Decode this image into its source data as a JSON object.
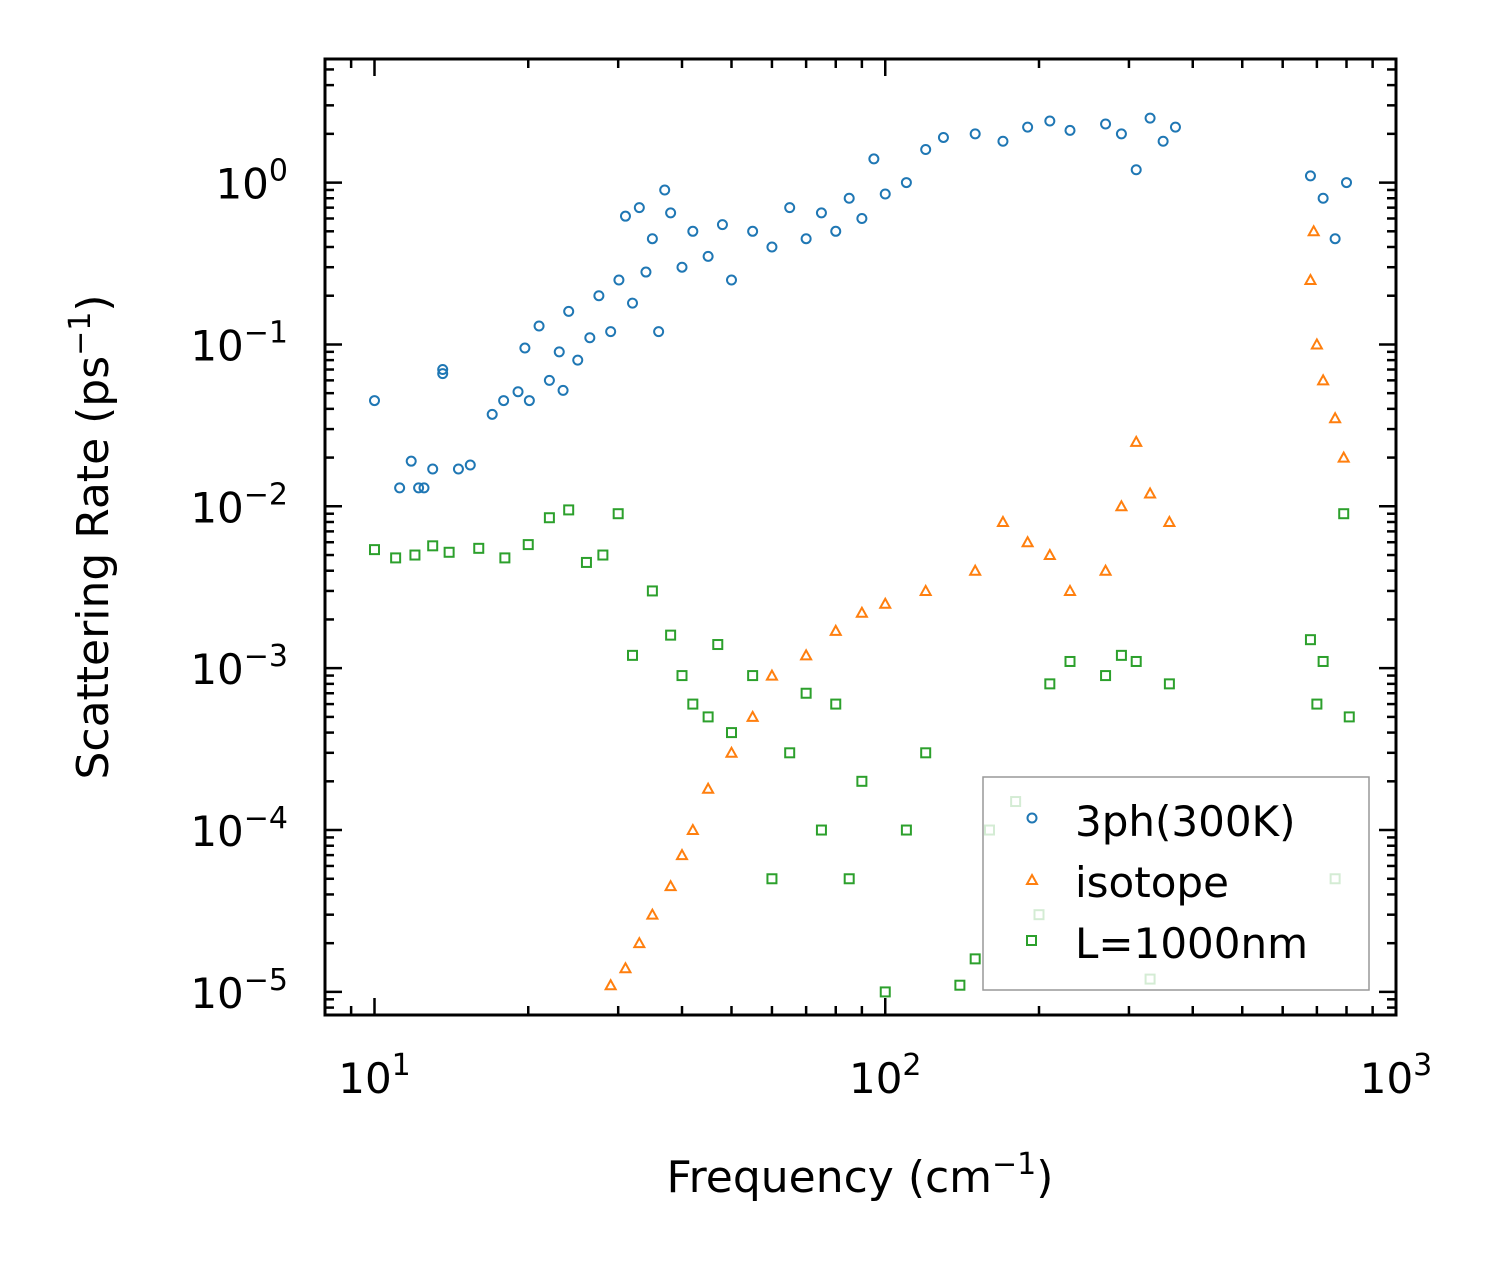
{
  "chart_data": {
    "type": "scatter",
    "title": "",
    "xlabel": {
      "text": "Frequency (cm",
      "sup": "−1",
      "tail": ")"
    },
    "ylabel": {
      "text": "Scattering Rate (ps",
      "sup": "−1",
      "tail": ")"
    },
    "xscale": "log",
    "yscale": "log",
    "xlim": [
      8,
      1000
    ],
    "ylim": [
      7.2e-06,
      5.8
    ],
    "grid": false,
    "x_ticks": [
      {
        "value": 10,
        "base": "10",
        "exp": "1"
      },
      {
        "value": 100,
        "base": "10",
        "exp": "2"
      },
      {
        "value": 1000,
        "base": "10",
        "exp": "3"
      }
    ],
    "y_ticks": [
      {
        "value": 1e-05,
        "base": "10",
        "exp": "−5"
      },
      {
        "value": 0.0001,
        "base": "10",
        "exp": "−4"
      },
      {
        "value": 0.001,
        "base": "10",
        "exp": "−3"
      },
      {
        "value": 0.01,
        "base": "10",
        "exp": "−2"
      },
      {
        "value": 0.1,
        "base": "10",
        "exp": "−1"
      },
      {
        "value": 1,
        "base": "10",
        "exp": "0"
      }
    ],
    "legend": {
      "location": "lower right",
      "entries": [
        {
          "label": "3ph(300K)",
          "color": "#1f77b4",
          "marker": "circle"
        },
        {
          "label": "isotope",
          "color": "#ff7f0e",
          "marker": "triangle"
        },
        {
          "label": "L=1000nm",
          "color": "#2ca02c",
          "marker": "square"
        }
      ]
    },
    "series": [
      {
        "name": "3ph(300K)",
        "color": "#1f77b4",
        "marker": "circle",
        "points": [
          [
            10.0,
            0.045
          ],
          [
            11.2,
            0.013
          ],
          [
            11.8,
            0.019
          ],
          [
            12.2,
            0.013
          ],
          [
            12.5,
            0.013
          ],
          [
            13.0,
            0.017
          ],
          [
            13.6,
            0.07
          ],
          [
            13.6,
            0.066
          ],
          [
            14.6,
            0.017
          ],
          [
            15.4,
            0.018
          ],
          [
            17.0,
            0.037
          ],
          [
            17.9,
            0.045
          ],
          [
            19.1,
            0.051
          ],
          [
            19.7,
            0.095
          ],
          [
            20.1,
            0.045
          ],
          [
            21.0,
            0.13
          ],
          [
            22.0,
            0.06
          ],
          [
            23.0,
            0.09
          ],
          [
            23.4,
            0.052
          ],
          [
            24.0,
            0.16
          ],
          [
            25.0,
            0.08
          ],
          [
            26.4,
            0.11
          ],
          [
            27.5,
            0.2
          ],
          [
            29.0,
            0.12
          ],
          [
            30.1,
            0.25
          ],
          [
            31.0,
            0.62
          ],
          [
            32.0,
            0.18
          ],
          [
            33.0,
            0.7
          ],
          [
            34.0,
            0.28
          ],
          [
            35.0,
            0.45
          ],
          [
            36.0,
            0.12
          ],
          [
            37.0,
            0.9
          ],
          [
            38.0,
            0.65
          ],
          [
            40.0,
            0.3
          ],
          [
            42.0,
            0.5
          ],
          [
            45.0,
            0.35
          ],
          [
            48.0,
            0.55
          ],
          [
            50.0,
            0.25
          ],
          [
            55.0,
            0.5
          ],
          [
            60.0,
            0.4
          ],
          [
            65.0,
            0.7
          ],
          [
            70.0,
            0.45
          ],
          [
            75.0,
            0.65
          ],
          [
            80.0,
            0.5
          ],
          [
            85.0,
            0.8
          ],
          [
            90.0,
            0.6
          ],
          [
            95.0,
            1.4
          ],
          [
            100.0,
            0.85
          ],
          [
            110.0,
            1.0
          ],
          [
            120.0,
            1.6
          ],
          [
            130.0,
            1.9
          ],
          [
            150.0,
            2.0
          ],
          [
            170.0,
            1.8
          ],
          [
            190.0,
            2.2
          ],
          [
            210.0,
            2.4
          ],
          [
            230.0,
            2.1
          ],
          [
            270.0,
            2.3
          ],
          [
            290.0,
            2.0
          ],
          [
            310.0,
            1.2
          ],
          [
            330.0,
            2.5
          ],
          [
            350.0,
            1.8
          ],
          [
            370.0,
            2.2
          ],
          [
            680.0,
            1.1
          ],
          [
            720.0,
            0.8
          ],
          [
            760.0,
            0.45
          ],
          [
            800.0,
            1.0
          ]
        ]
      },
      {
        "name": "isotope",
        "color": "#ff7f0e",
        "marker": "triangle",
        "points": [
          [
            29.0,
            1.1e-05
          ],
          [
            31.0,
            1.4e-05
          ],
          [
            33.0,
            2e-05
          ],
          [
            35.0,
            3e-05
          ],
          [
            38.0,
            4.5e-05
          ],
          [
            40.0,
            7e-05
          ],
          [
            42.0,
            0.0001
          ],
          [
            45.0,
            0.00018
          ],
          [
            50.0,
            0.0003
          ],
          [
            55.0,
            0.0005
          ],
          [
            60.0,
            0.0009
          ],
          [
            70.0,
            0.0012
          ],
          [
            80.0,
            0.0017
          ],
          [
            90.0,
            0.0022
          ],
          [
            100.0,
            0.0025
          ],
          [
            120.0,
            0.003
          ],
          [
            150.0,
            0.004
          ],
          [
            170.0,
            0.008
          ],
          [
            190.0,
            0.006
          ],
          [
            210.0,
            0.005
          ],
          [
            230.0,
            0.003
          ],
          [
            270.0,
            0.004
          ],
          [
            290.0,
            0.01
          ],
          [
            310.0,
            0.025
          ],
          [
            330.0,
            0.012
          ],
          [
            360.0,
            0.008
          ],
          [
            680.0,
            0.25
          ],
          [
            700.0,
            0.1
          ],
          [
            720.0,
            0.06
          ],
          [
            760.0,
            0.035
          ],
          [
            790.0,
            0.02
          ],
          [
            690.0,
            0.5
          ]
        ]
      },
      {
        "name": "L=1000nm",
        "color": "#2ca02c",
        "marker": "square",
        "points": [
          [
            10.0,
            0.0054
          ],
          [
            11.0,
            0.0048
          ],
          [
            12.0,
            0.005
          ],
          [
            13.0,
            0.0057
          ],
          [
            14.0,
            0.0052
          ],
          [
            16.0,
            0.0055
          ],
          [
            18.0,
            0.0048
          ],
          [
            20.0,
            0.0058
          ],
          [
            22.0,
            0.0085
          ],
          [
            24.0,
            0.0095
          ],
          [
            26.0,
            0.0045
          ],
          [
            28.0,
            0.005
          ],
          [
            30.0,
            0.009
          ],
          [
            32.0,
            0.0012
          ],
          [
            35.0,
            0.003
          ],
          [
            38.0,
            0.0016
          ],
          [
            40.0,
            0.0009
          ],
          [
            42.0,
            0.0006
          ],
          [
            45.0,
            0.0005
          ],
          [
            47.0,
            0.0014
          ],
          [
            50.0,
            0.0004
          ],
          [
            55.0,
            0.0009
          ],
          [
            60.0,
            5e-05
          ],
          [
            65.0,
            0.0003
          ],
          [
            70.0,
            0.0007
          ],
          [
            75.0,
            0.0001
          ],
          [
            80.0,
            0.0006
          ],
          [
            85.0,
            5e-05
          ],
          [
            90.0,
            0.0002
          ],
          [
            100.0,
            1e-05
          ],
          [
            110.0,
            0.0001
          ],
          [
            120.0,
            0.0003
          ],
          [
            140.0,
            1.1e-05
          ],
          [
            150.0,
            1.6e-05
          ],
          [
            160.0,
            0.0001
          ],
          [
            180.0,
            0.00015
          ],
          [
            200.0,
            3e-05
          ],
          [
            210.0,
            0.0008
          ],
          [
            230.0,
            0.0011
          ],
          [
            270.0,
            0.0009
          ],
          [
            290.0,
            0.0012
          ],
          [
            310.0,
            0.0011
          ],
          [
            330.0,
            1.2e-05
          ],
          [
            360.0,
            0.0008
          ],
          [
            680.0,
            0.0015
          ],
          [
            700.0,
            0.0006
          ],
          [
            720.0,
            0.0011
          ],
          [
            760.0,
            5e-05
          ],
          [
            790.0,
            0.009
          ],
          [
            810.0,
            0.0005
          ]
        ]
      }
    ]
  }
}
